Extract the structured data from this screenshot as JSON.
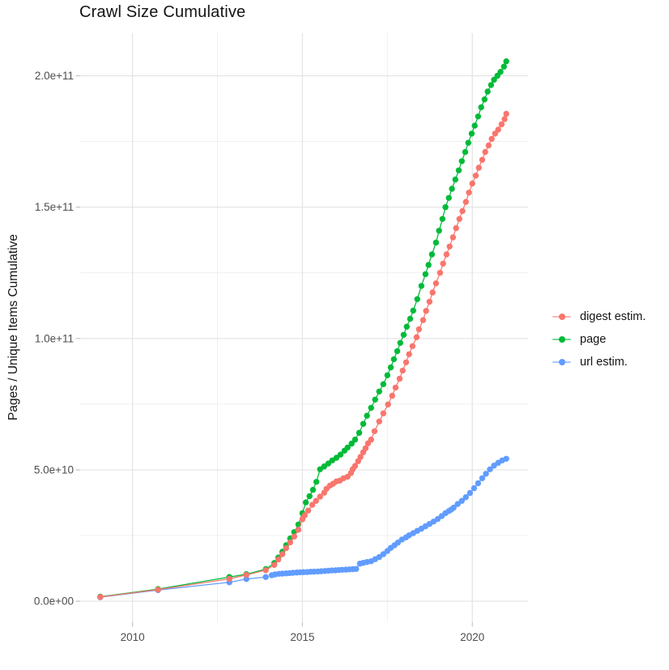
{
  "chart_data": {
    "type": "line",
    "title": "Crawl Size Cumulative",
    "xlabel": "",
    "ylabel": "Pages / Unique Items Cumulative",
    "legend_position": "right",
    "grid": true,
    "background": "#FFFFFF",
    "x_domain": [
      2008.46,
      2021.64
    ],
    "y_domain_e9": [
      -8,
      216.2
    ],
    "x_ticks": {
      "major": [
        2010,
        2015,
        2020
      ],
      "labels": [
        "2010",
        "2015",
        "2020"
      ],
      "minor": [
        2012.5,
        2017.5
      ]
    },
    "y_ticks": {
      "major_e9": [
        0,
        50,
        100,
        150,
        200
      ],
      "labels": [
        "0.0e+00",
        "5.0e+10",
        "1.0e+11",
        "1.5e+11",
        "2.0e+11"
      ],
      "minor_e9": [
        25,
        75,
        125,
        175
      ]
    },
    "colors": {
      "grid_major": "#e3e3e3",
      "grid_minor": "#efefef",
      "tick_mark": "#c4c4c4",
      "axis_text": "#4d4d4d",
      "title_text": "#141414"
    },
    "series": [
      {
        "name": "digest estim.",
        "color": "#F8766D",
        "z": 3,
        "marker_r": 3.7,
        "points_year_value_e9": [
          [
            2009.05,
            1.6
          ],
          [
            2010.75,
            4.4
          ],
          [
            2012.85,
            8.5
          ],
          [
            2013.35,
            10.0
          ],
          [
            2013.92,
            11.8
          ],
          [
            2014.17,
            13.8
          ],
          [
            2014.29,
            15.9
          ],
          [
            2014.41,
            17.9
          ],
          [
            2014.52,
            20.2
          ],
          [
            2014.64,
            22.4
          ],
          [
            2014.76,
            24.6
          ],
          [
            2014.88,
            27.2
          ],
          [
            2015.0,
            31.2
          ],
          [
            2015.07,
            32.7
          ],
          [
            2015.17,
            34.5
          ],
          [
            2015.29,
            36.7
          ],
          [
            2015.4,
            38.2
          ],
          [
            2015.52,
            39.8
          ],
          [
            2015.64,
            41.3
          ],
          [
            2015.71,
            42.8
          ],
          [
            2015.81,
            44.0
          ],
          [
            2015.9,
            44.7
          ],
          [
            2016.0,
            45.6
          ],
          [
            2016.1,
            45.9
          ],
          [
            2016.21,
            46.8
          ],
          [
            2016.33,
            47.4
          ],
          [
            2016.43,
            48.8
          ],
          [
            2016.48,
            50.2
          ],
          [
            2016.55,
            51.5
          ],
          [
            2016.64,
            53.3
          ],
          [
            2016.71,
            54.9
          ],
          [
            2016.79,
            56.7
          ],
          [
            2016.86,
            58.2
          ],
          [
            2016.93,
            60.1
          ],
          [
            2017.02,
            61.5
          ],
          [
            2017.12,
            64.7
          ],
          [
            2017.26,
            68.4
          ],
          [
            2017.38,
            71.5
          ],
          [
            2017.52,
            74.9
          ],
          [
            2017.64,
            78.2
          ],
          [
            2017.74,
            81.3
          ],
          [
            2017.86,
            84.7
          ],
          [
            2017.95,
            87.8
          ],
          [
            2018.05,
            90.9
          ],
          [
            2018.14,
            94.0
          ],
          [
            2018.24,
            97.1
          ],
          [
            2018.36,
            100.5
          ],
          [
            2018.43,
            103.5
          ],
          [
            2018.55,
            107.0
          ],
          [
            2018.64,
            110.5
          ],
          [
            2018.74,
            114.0
          ],
          [
            2018.83,
            117.5
          ],
          [
            2018.93,
            121.0
          ],
          [
            2019.05,
            125.0
          ],
          [
            2019.14,
            128.5
          ],
          [
            2019.24,
            132.0
          ],
          [
            2019.33,
            135.0
          ],
          [
            2019.43,
            138.5
          ],
          [
            2019.52,
            142.0
          ],
          [
            2019.62,
            145.5
          ],
          [
            2019.71,
            148.5
          ],
          [
            2019.81,
            152.0
          ],
          [
            2019.9,
            155.5
          ],
          [
            2020.0,
            159.0
          ],
          [
            2020.1,
            162.0
          ],
          [
            2020.19,
            165.0
          ],
          [
            2020.29,
            168.0
          ],
          [
            2020.38,
            171.0
          ],
          [
            2020.48,
            173.5
          ],
          [
            2020.57,
            176.0
          ],
          [
            2020.67,
            178.0
          ],
          [
            2020.76,
            179.5
          ],
          [
            2020.86,
            181.5
          ],
          [
            2020.95,
            183.5
          ],
          [
            2021.0,
            185.5
          ]
        ]
      },
      {
        "name": "page",
        "color": "#00BA38",
        "z": 1,
        "marker_r": 3.7,
        "points_year_value_e9": [
          [
            2009.05,
            1.7
          ],
          [
            2010.75,
            4.6
          ],
          [
            2012.85,
            9.2
          ],
          [
            2013.35,
            10.3
          ],
          [
            2013.92,
            12.2
          ],
          [
            2014.17,
            14.5
          ],
          [
            2014.29,
            16.6
          ],
          [
            2014.41,
            18.8
          ],
          [
            2014.52,
            21.3
          ],
          [
            2014.64,
            23.9
          ],
          [
            2014.76,
            26.3
          ],
          [
            2014.88,
            29.2
          ],
          [
            2015.0,
            33.5
          ],
          [
            2015.1,
            37.6
          ],
          [
            2015.21,
            40.0
          ],
          [
            2015.31,
            42.4
          ],
          [
            2015.41,
            45.4
          ],
          [
            2015.52,
            50.2
          ],
          [
            2015.64,
            51.3
          ],
          [
            2015.76,
            52.4
          ],
          [
            2015.88,
            53.6
          ],
          [
            2016.0,
            54.6
          ],
          [
            2016.12,
            55.8
          ],
          [
            2016.24,
            57.3
          ],
          [
            2016.33,
            58.5
          ],
          [
            2016.45,
            60.0
          ],
          [
            2016.55,
            61.5
          ],
          [
            2016.67,
            64.1
          ],
          [
            2016.79,
            67.5
          ],
          [
            2016.9,
            70.6
          ],
          [
            2017.02,
            73.6
          ],
          [
            2017.14,
            76.7
          ],
          [
            2017.26,
            79.8
          ],
          [
            2017.38,
            82.6
          ],
          [
            2017.5,
            86.0
          ],
          [
            2017.6,
            89.0
          ],
          [
            2017.69,
            92.1
          ],
          [
            2017.79,
            95.2
          ],
          [
            2017.88,
            98.3
          ],
          [
            2017.98,
            101.4
          ],
          [
            2018.07,
            104.5
          ],
          [
            2018.17,
            107.5
          ],
          [
            2018.26,
            110.6
          ],
          [
            2018.38,
            115.0
          ],
          [
            2018.5,
            120.0
          ],
          [
            2018.62,
            124.5
          ],
          [
            2018.71,
            128.0
          ],
          [
            2018.81,
            132.0
          ],
          [
            2018.93,
            136.5
          ],
          [
            2019.02,
            141.0
          ],
          [
            2019.12,
            145.5
          ],
          [
            2019.21,
            150.0
          ],
          [
            2019.31,
            153.5
          ],
          [
            2019.4,
            157.0
          ],
          [
            2019.5,
            160.5
          ],
          [
            2019.6,
            164.0
          ],
          [
            2019.69,
            167.5
          ],
          [
            2019.79,
            171.0
          ],
          [
            2019.88,
            174.5
          ],
          [
            2019.98,
            178.0
          ],
          [
            2020.07,
            181.0
          ],
          [
            2020.17,
            184.5
          ],
          [
            2020.26,
            188.0
          ],
          [
            2020.36,
            191.0
          ],
          [
            2020.45,
            194.0
          ],
          [
            2020.55,
            196.5
          ],
          [
            2020.64,
            198.5
          ],
          [
            2020.74,
            200.0
          ],
          [
            2020.83,
            201.5
          ],
          [
            2020.93,
            203.5
          ],
          [
            2021.0,
            205.5
          ]
        ]
      },
      {
        "name": "url estim.",
        "color": "#619CFF",
        "z": 2,
        "marker_r": 3.7,
        "points_year_value_e9": [
          [
            2009.05,
            1.5
          ],
          [
            2010.75,
            4.2
          ],
          [
            2012.85,
            7.2
          ],
          [
            2013.35,
            8.4
          ],
          [
            2013.92,
            9.2
          ],
          [
            2014.1,
            9.9
          ],
          [
            2014.2,
            10.2
          ],
          [
            2014.31,
            10.4
          ],
          [
            2014.41,
            10.5
          ],
          [
            2014.52,
            10.6
          ],
          [
            2014.62,
            10.7
          ],
          [
            2014.72,
            10.8
          ],
          [
            2014.83,
            10.9
          ],
          [
            2014.93,
            11.0
          ],
          [
            2015.03,
            11.05
          ],
          [
            2015.14,
            11.1
          ],
          [
            2015.24,
            11.2
          ],
          [
            2015.34,
            11.25
          ],
          [
            2015.45,
            11.3
          ],
          [
            2015.55,
            11.4
          ],
          [
            2015.66,
            11.5
          ],
          [
            2015.76,
            11.6
          ],
          [
            2015.86,
            11.7
          ],
          [
            2015.97,
            11.75
          ],
          [
            2016.07,
            11.85
          ],
          [
            2016.17,
            11.95
          ],
          [
            2016.28,
            12.0
          ],
          [
            2016.38,
            12.1
          ],
          [
            2016.48,
            12.2
          ],
          [
            2016.58,
            12.3
          ],
          [
            2016.69,
            14.3
          ],
          [
            2016.79,
            14.6
          ],
          [
            2016.9,
            14.9
          ],
          [
            2017.02,
            15.2
          ],
          [
            2017.14,
            16.0
          ],
          [
            2017.26,
            16.8
          ],
          [
            2017.38,
            17.9
          ],
          [
            2017.5,
            19.1
          ],
          [
            2017.6,
            20.3
          ],
          [
            2017.71,
            21.3
          ],
          [
            2017.81,
            22.3
          ],
          [
            2017.93,
            23.5
          ],
          [
            2018.05,
            24.3
          ],
          [
            2018.14,
            25.1
          ],
          [
            2018.26,
            25.9
          ],
          [
            2018.38,
            26.8
          ],
          [
            2018.5,
            27.6
          ],
          [
            2018.62,
            28.5
          ],
          [
            2018.74,
            29.4
          ],
          [
            2018.86,
            30.3
          ],
          [
            2018.98,
            31.3
          ],
          [
            2019.1,
            32.4
          ],
          [
            2019.21,
            33.5
          ],
          [
            2019.31,
            34.3
          ],
          [
            2019.38,
            34.9
          ],
          [
            2019.45,
            35.6
          ],
          [
            2019.57,
            37.0
          ],
          [
            2019.69,
            38.2
          ],
          [
            2019.81,
            39.6
          ],
          [
            2019.93,
            41.2
          ],
          [
            2020.05,
            43.0
          ],
          [
            2020.17,
            44.9
          ],
          [
            2020.29,
            46.8
          ],
          [
            2020.4,
            48.5
          ],
          [
            2020.52,
            50.2
          ],
          [
            2020.64,
            51.6
          ],
          [
            2020.76,
            52.7
          ],
          [
            2020.88,
            53.6
          ],
          [
            2021.0,
            54.2
          ]
        ]
      }
    ]
  }
}
